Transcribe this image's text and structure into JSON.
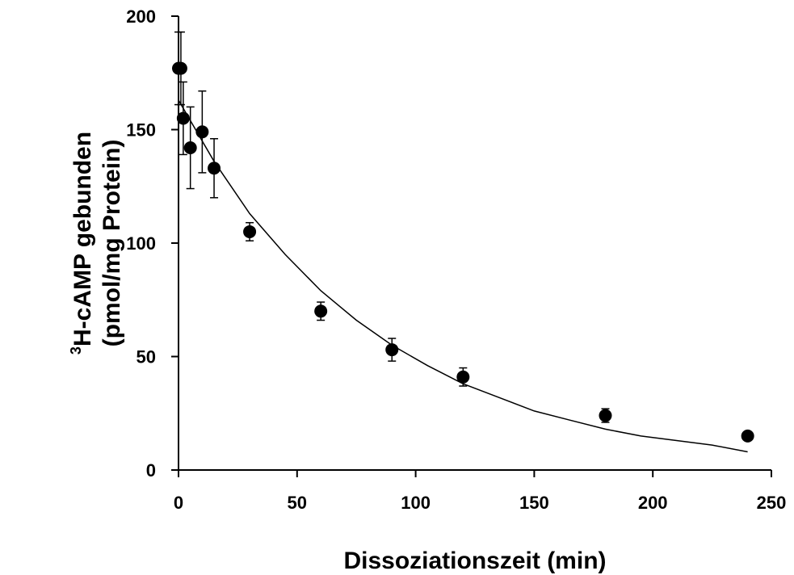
{
  "chart_data": {
    "type": "scatter",
    "title": "",
    "xlabel": "Dissoziationszeit (min)",
    "ylabel": {
      "superscript": "3",
      "line1": "H-cAMP gebunden",
      "line2": "(pmol/mg Protein)"
    },
    "xlim": [
      0,
      250
    ],
    "ylim": [
      0,
      200
    ],
    "x_ticks": [
      0,
      50,
      100,
      150,
      200,
      250
    ],
    "y_ticks": [
      0,
      50,
      100,
      150,
      200
    ],
    "grid": false,
    "legend": "none",
    "series": [
      {
        "x": [
          0,
          1,
          2,
          5,
          10,
          15,
          30,
          60,
          90,
          120,
          180,
          240
        ],
        "y": [
          177,
          177,
          155,
          142,
          149,
          133,
          105,
          70,
          53,
          41,
          24,
          15
        ],
        "err": [
          16,
          16,
          16,
          18,
          18,
          13,
          4,
          4,
          5,
          4,
          3,
          1
        ]
      }
    ],
    "fit_curve": {
      "type": "exponential_decay",
      "x": [
        0,
        15,
        30,
        45,
        60,
        75,
        90,
        105,
        120,
        135,
        150,
        165,
        180,
        195,
        210,
        225,
        240
      ],
      "y": [
        163,
        136,
        113,
        95,
        79,
        66,
        55,
        46,
        38,
        32,
        26,
        22,
        18,
        15,
        13,
        11,
        8
      ]
    },
    "colors": {
      "marker": "#000000",
      "line": "#000000"
    }
  }
}
